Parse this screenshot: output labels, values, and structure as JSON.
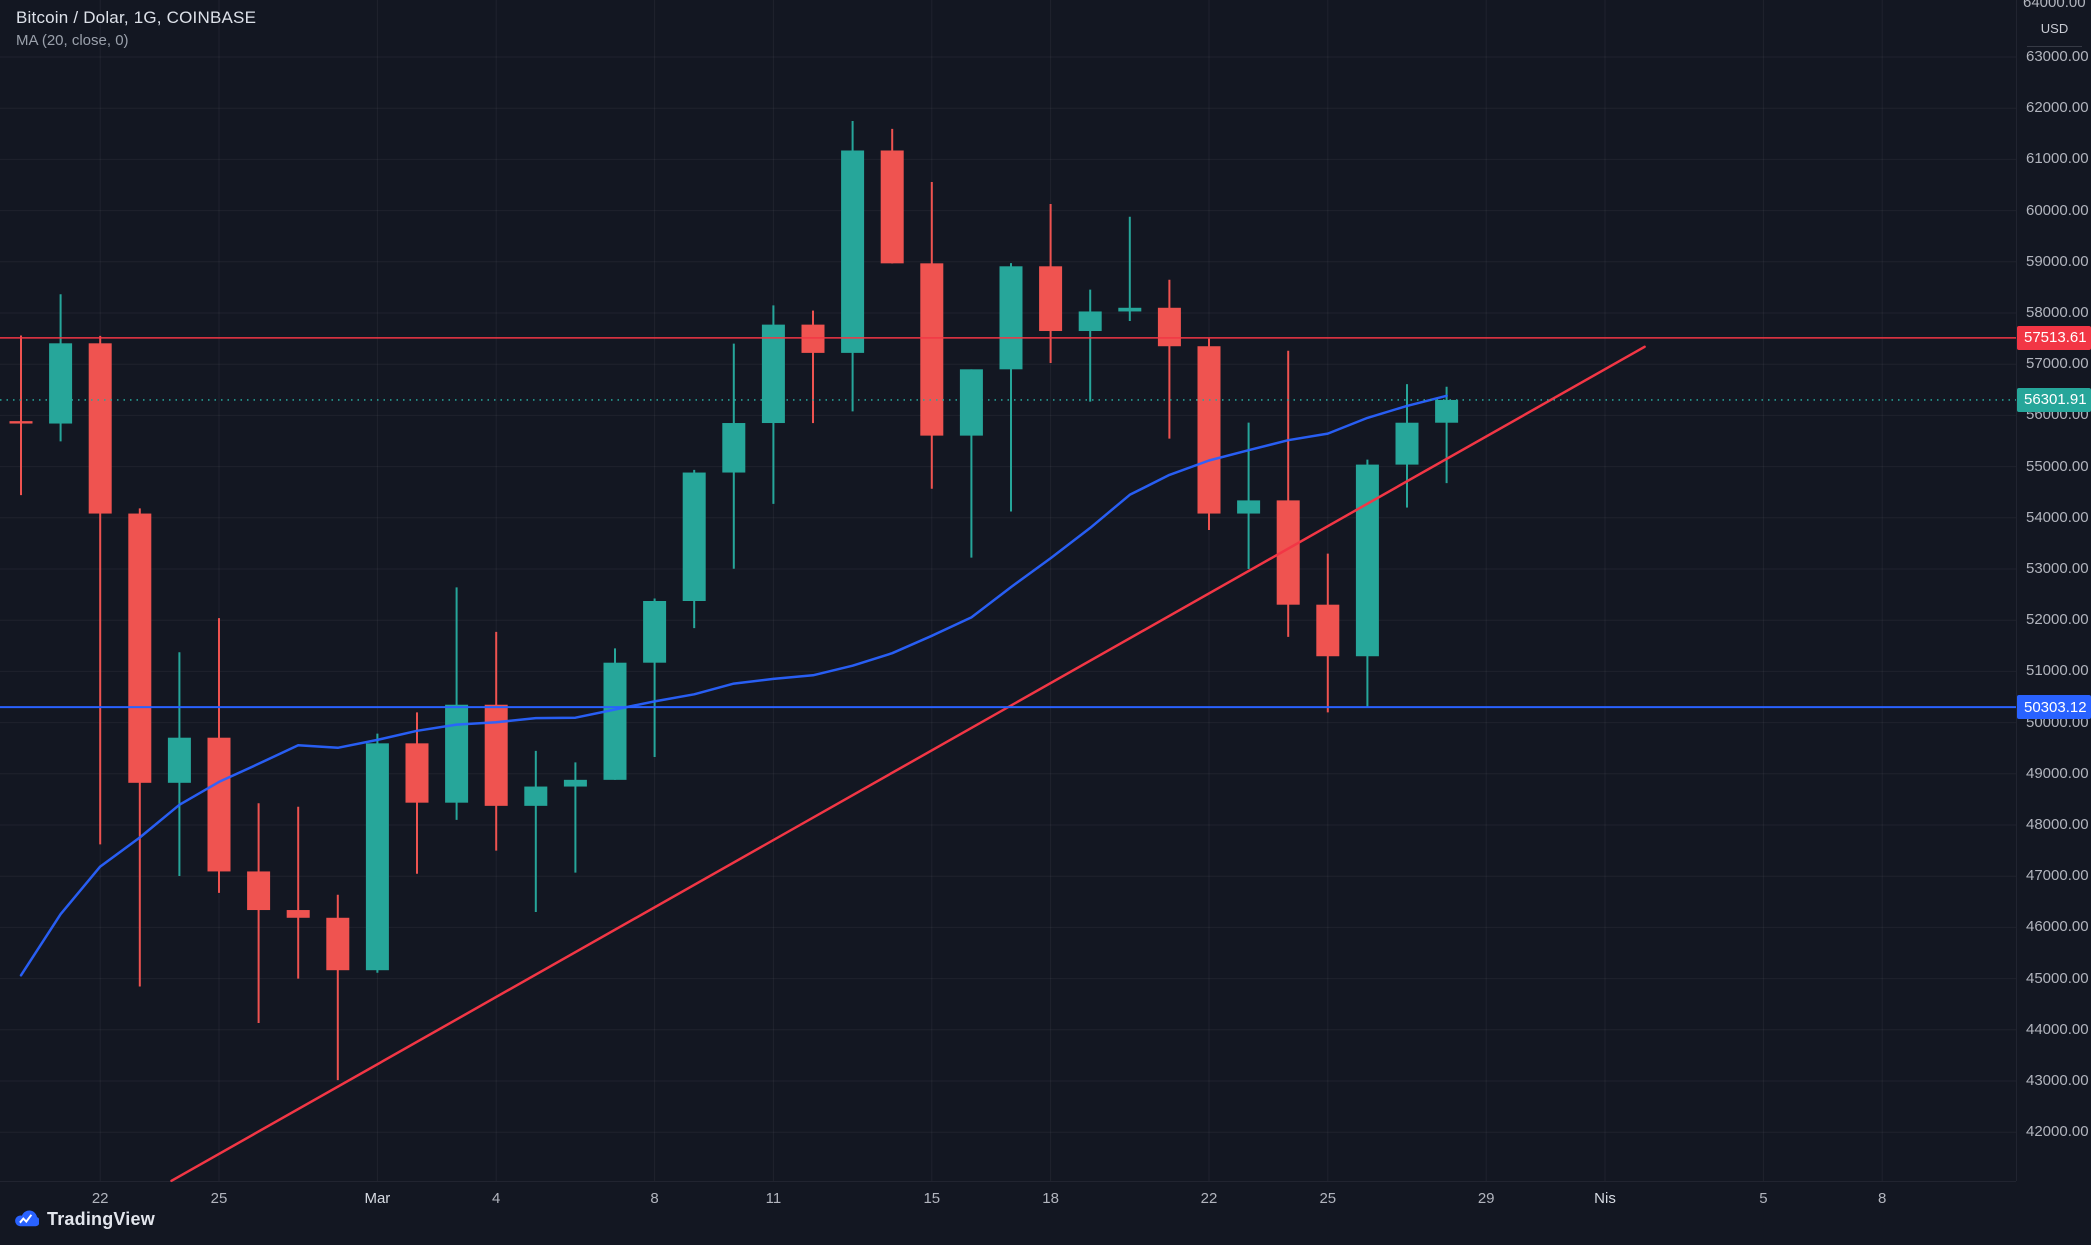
{
  "header": {
    "symbol_title": "Bitcoin / Dolar, 1G, COINBASE",
    "indicator_label": "MA (20, close, 0)"
  },
  "footer": {
    "logo_text": "TradingView"
  },
  "price_axis": {
    "currency_label": "USD",
    "top_label": "64000.00",
    "ticks": [
      "63000.00",
      "62000.00",
      "61000.00",
      "60000.00",
      "59000.00",
      "58000.00",
      "57000.00",
      "56000.00",
      "55000.00",
      "54000.00",
      "53000.00",
      "52000.00",
      "51000.00",
      "50000.00",
      "49000.00",
      "48000.00",
      "47000.00",
      "46000.00",
      "45000.00",
      "44000.00",
      "43000.00",
      "42000.00"
    ]
  },
  "time_axis": {
    "ticks": [
      {
        "label": "22",
        "index": 2
      },
      {
        "label": "25",
        "index": 5
      },
      {
        "label": "Mar",
        "index": 9
      },
      {
        "label": "4",
        "index": 12
      },
      {
        "label": "8",
        "index": 16
      },
      {
        "label": "11",
        "index": 19
      },
      {
        "label": "15",
        "index": 23
      },
      {
        "label": "18",
        "index": 26
      },
      {
        "label": "22",
        "index": 30
      },
      {
        "label": "25",
        "index": 33
      },
      {
        "label": "29",
        "index": 37
      },
      {
        "label": "Nis",
        "index": 40
      },
      {
        "label": "5",
        "index": 44
      },
      {
        "label": "8",
        "index": 47
      }
    ]
  },
  "colors": {
    "background": "#131722",
    "up": "#26a69a",
    "down": "#ef5350",
    "ma": "#2962ff",
    "trendline": "#f23645",
    "level_red": "#f23645",
    "level_blue": "#2962ff",
    "current": "#26a69a",
    "axis_text": "#b2b5be",
    "grid": "rgba(255,255,255,0.05)"
  },
  "chart_data": {
    "type": "candlestick",
    "title": "Bitcoin / Dolar, 1G, COINBASE",
    "symbol": "Bitcoin / Dolar",
    "timeframe": "1G",
    "exchange": "COINBASE",
    "currency": "USD",
    "ylim": [
      41100,
      64100
    ],
    "grid": true,
    "candles": [
      {
        "date": "Feb 20",
        "open": 55888,
        "high": 57560,
        "low": 54442,
        "close": 55841
      },
      {
        "date": "Feb 21",
        "open": 55841,
        "high": 58366,
        "low": 55493,
        "close": 57408
      },
      {
        "date": "Feb 22",
        "open": 57408,
        "high": 57553,
        "low": 47622,
        "close": 54083
      },
      {
        "date": "Feb 23",
        "open": 54083,
        "high": 54183,
        "low": 44845,
        "close": 48824
      },
      {
        "date": "Feb 24",
        "open": 48824,
        "high": 51374,
        "low": 47004,
        "close": 49705
      },
      {
        "date": "Feb 25",
        "open": 49705,
        "high": 52041,
        "low": 46674,
        "close": 47093
      },
      {
        "date": "Feb 26",
        "open": 47093,
        "high": 48424,
        "low": 44132,
        "close": 46339
      },
      {
        "date": "Feb 27",
        "open": 46339,
        "high": 48356,
        "low": 45000,
        "close": 46188
      },
      {
        "date": "Feb 28",
        "open": 46188,
        "high": 46638,
        "low": 43016,
        "close": 45164
      },
      {
        "date": "Mar 1",
        "open": 45164,
        "high": 49784,
        "low": 45115,
        "close": 49595
      },
      {
        "date": "Mar 2",
        "open": 49595,
        "high": 50200,
        "low": 47047,
        "close": 48436
      },
      {
        "date": "Mar 3",
        "open": 48436,
        "high": 52640,
        "low": 48100,
        "close": 50349
      },
      {
        "date": "Mar 4",
        "open": 50349,
        "high": 51773,
        "low": 47500,
        "close": 48374
      },
      {
        "date": "Mar 5",
        "open": 48374,
        "high": 49448,
        "low": 46300,
        "close": 48751
      },
      {
        "date": "Mar 6",
        "open": 48751,
        "high": 49222,
        "low": 47070,
        "close": 48882
      },
      {
        "date": "Mar 7",
        "open": 48882,
        "high": 51450,
        "low": 48882,
        "close": 51170
      },
      {
        "date": "Mar 8",
        "open": 51170,
        "high": 52425,
        "low": 49328,
        "close": 52375
      },
      {
        "date": "Mar 9",
        "open": 52375,
        "high": 54936,
        "low": 51845,
        "close": 54884
      },
      {
        "date": "Mar 10",
        "open": 54884,
        "high": 57402,
        "low": 53005,
        "close": 55851
      },
      {
        "date": "Mar 11",
        "open": 55851,
        "high": 58150,
        "low": 54272,
        "close": 57773
      },
      {
        "date": "Mar 12",
        "open": 57773,
        "high": 58047,
        "low": 55850,
        "close": 57221
      },
      {
        "date": "Mar 13",
        "open": 57221,
        "high": 61750,
        "low": 56078,
        "close": 61174
      },
      {
        "date": "Mar 14",
        "open": 61174,
        "high": 61597,
        "low": 58966,
        "close": 58970
      },
      {
        "date": "Mar 15",
        "open": 58970,
        "high": 60559,
        "low": 54568,
        "close": 55605
      },
      {
        "date": "Mar 16",
        "open": 55605,
        "high": 56900,
        "low": 53221,
        "close": 56900
      },
      {
        "date": "Mar 17",
        "open": 56900,
        "high": 58974,
        "low": 54123,
        "close": 58912
      },
      {
        "date": "Mar 18",
        "open": 58912,
        "high": 60129,
        "low": 57023,
        "close": 57648
      },
      {
        "date": "Mar 19",
        "open": 57648,
        "high": 58456,
        "low": 56270,
        "close": 58030
      },
      {
        "date": "Mar 20",
        "open": 58030,
        "high": 59880,
        "low": 57843,
        "close": 58102
      },
      {
        "date": "Mar 21",
        "open": 58102,
        "high": 58650,
        "low": 55547,
        "close": 57351
      },
      {
        "date": "Mar 22",
        "open": 57351,
        "high": 57500,
        "low": 53762,
        "close": 54083
      },
      {
        "date": "Mar 23",
        "open": 54083,
        "high": 55858,
        "low": 53000,
        "close": 54340
      },
      {
        "date": "Mar 24",
        "open": 54340,
        "high": 57262,
        "low": 51674,
        "close": 52303
      },
      {
        "date": "Mar 25",
        "open": 52303,
        "high": 53300,
        "low": 50200,
        "close": 51296
      },
      {
        "date": "Mar 26",
        "open": 51296,
        "high": 55137,
        "low": 50303,
        "close": 55039
      },
      {
        "date": "Mar 27",
        "open": 55039,
        "high": 56610,
        "low": 54200,
        "close": 55857
      },
      {
        "date": "Mar 28",
        "open": 55857,
        "high": 56559,
        "low": 54677,
        "close": 56302
      }
    ],
    "series": [
      {
        "name": "MA (20, close, 0)",
        "values": [
          45065,
          46258,
          47187,
          47755,
          48394,
          48841,
          49195,
          49559,
          49507,
          49663,
          49839,
          49961,
          50005,
          50087,
          50095,
          50256,
          50415,
          50552,
          50761,
          50854,
          50923,
          51112,
          51356,
          51695,
          52055,
          52646,
          53211,
          53803,
          54450,
          54838,
          55120,
          55320,
          55516,
          55644,
          55951,
          56186,
          56382
        ]
      }
    ],
    "trendline": {
      "from": {
        "index": 3.8,
        "price": 41050
      },
      "to": {
        "index": 41.0,
        "price": 57340
      }
    },
    "levels": [
      {
        "label": "57513.61",
        "price": 57513.61,
        "color": "#f23645",
        "style": "solid",
        "width": 1.5
      },
      {
        "label": "50303.12",
        "price": 50303.12,
        "color": "#2962ff",
        "style": "solid",
        "width": 2
      }
    ],
    "current_price": {
      "label": "56301.91",
      "price": 56301.91,
      "color": "#26a69a",
      "style": "dotted"
    }
  }
}
